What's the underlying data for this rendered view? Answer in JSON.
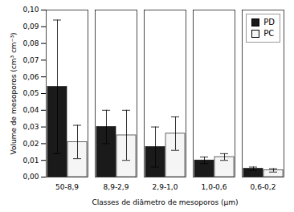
{
  "chart_data": {
    "type": "bar",
    "categories": [
      "50-8,9",
      "8,9-2,9",
      "2,9-1,0",
      "1,0-0,6",
      "0,6-0,2"
    ],
    "series": [
      {
        "name": "PD",
        "color": "#1a1a1a",
        "values": [
          0.054,
          0.03,
          0.018,
          0.01,
          0.005
        ],
        "errors": [
          0.04,
          0.01,
          0.012,
          0.002,
          0.001
        ]
      },
      {
        "name": "PC",
        "color": "#f5f5f5",
        "values": [
          0.021,
          0.025,
          0.026,
          0.012,
          0.004
        ],
        "errors": [
          0.01,
          0.015,
          0.01,
          0.002,
          0.001
        ]
      }
    ],
    "xlabel": "Classes de diâmetro de mesoporos (μm)",
    "ylabel": "Volume de mesoporos (cm³ cm⁻³)",
    "ylim": [
      0.0,
      0.1
    ],
    "yticks": [
      {
        "value": 0.0,
        "label": "0,00"
      },
      {
        "value": 0.01,
        "label": "0,01"
      },
      {
        "value": 0.02,
        "label": "0,02"
      },
      {
        "value": 0.03,
        "label": "0,03"
      },
      {
        "value": 0.04,
        "label": "0,04"
      },
      {
        "value": 0.05,
        "label": "0,05"
      },
      {
        "value": 0.06,
        "label": "0,06"
      },
      {
        "value": 0.07,
        "label": "0,07"
      },
      {
        "value": 0.08,
        "label": "0,08"
      },
      {
        "value": 0.09,
        "label": "0,09"
      },
      {
        "value": 0.1,
        "label": "0,10"
      }
    ],
    "legend": "upper right"
  }
}
